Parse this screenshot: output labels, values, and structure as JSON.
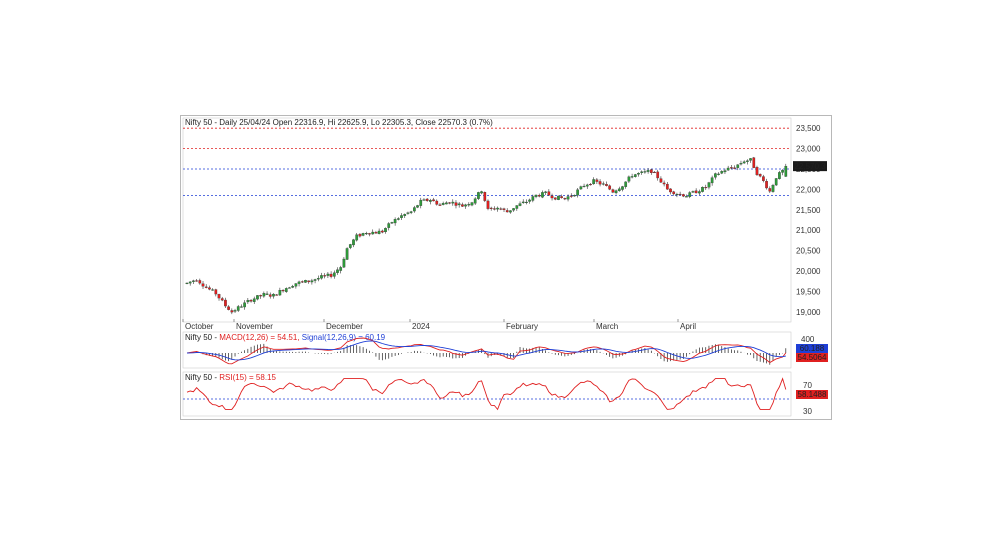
{
  "chart_data": [
    {
      "type": "candlestick",
      "title": "Nifty 50 - Daily 25/04/24 Open 22316.9, Hi 22625.9, Lo 22305.3, Close 22570.3 (0.7%)",
      "ylim": [
        18750,
        23750
      ],
      "y_ticks": [
        "23,500",
        "23,000",
        "22,500",
        "22,000",
        "21,500",
        "21,000",
        "20,500",
        "20,000",
        "19,500",
        "19,000"
      ],
      "y_tick_values": [
        23500,
        23000,
        22500,
        22000,
        21500,
        21000,
        20500,
        20000,
        19500,
        19000
      ],
      "x_months": [
        "October",
        "November",
        "December",
        "2024",
        "February",
        "March",
        "April"
      ],
      "last_close_label": "22,570.3",
      "last_close": 22570.3,
      "resistance_lines": [
        23500,
        23000
      ],
      "support_lines": [
        22500,
        21850
      ],
      "up_color": "#2e9b3a",
      "down_color": "#e02020",
      "ohlc": []
    },
    {
      "type": "line",
      "title": "Nifty 50 - MACD(12,26) = 54.51, Signal(12,26,9) = 60.19",
      "title_prefix": "Nifty 50 - ",
      "macd_label": "MACD(12,26) = 54.51,",
      "signal_label": "Signal(12,26,9) = 60.19",
      "y_tick": "400",
      "macd_value_label": "54.5064",
      "signal_value_label": "60.188",
      "macd_color": "#e02020",
      "signal_color": "#1f3fd6",
      "histogram_color": "#222222"
    },
    {
      "type": "line",
      "title_prefix": "Nifty 50 - ",
      "rsi_label": "RSI(15) = 58.15",
      "y_ticks": [
        "70",
        "30"
      ],
      "y_tick_values": [
        70,
        30
      ],
      "rsi_value_label": "58.1488",
      "reference_line": 50,
      "rsi_color": "#e02020"
    }
  ]
}
